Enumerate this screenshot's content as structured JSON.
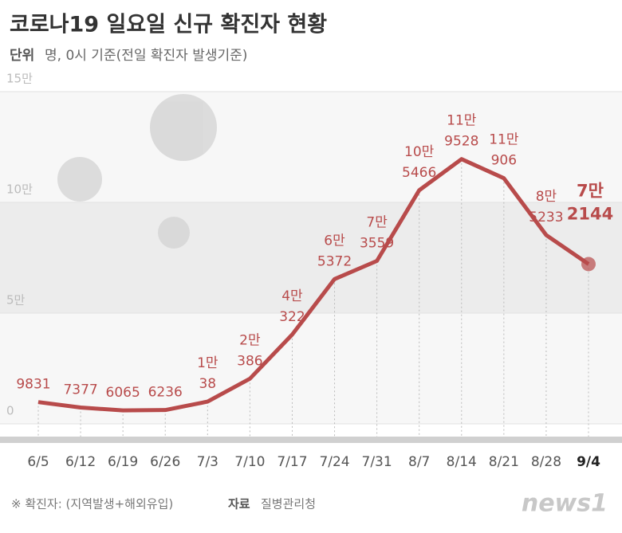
{
  "chart_data": {
    "type": "line",
    "title": "코로나19 일요일 신규 확진자 현황",
    "unit_label": "단위",
    "subtitle": "명, 0시 기준(전일 확진자 발생기준)",
    "categories": [
      "6/5",
      "6/12",
      "6/19",
      "6/26",
      "7/3",
      "7/10",
      "7/17",
      "7/24",
      "7/31",
      "8/7",
      "8/14",
      "8/21",
      "8/28",
      "9/4"
    ],
    "series": [
      {
        "color": "#b84b4b",
        "values": [
          9831,
          7377,
          6065,
          6236,
          10038,
          20386,
          40322,
          65372,
          73559,
          105466,
          119528,
          110906,
          85233,
          72144
        ],
        "value_labels": [
          "9831",
          "7377",
          "6065",
          "6236",
          "1만\n38",
          "2만\n386",
          "4만\n322",
          "6만\n5372",
          "7만\n3559",
          "10만\n5466",
          "11만\n9528",
          "11만\n906",
          "8만\n5233",
          "7만\n2144"
        ]
      }
    ],
    "ylim": [
      0,
      150000
    ],
    "yticks": [
      0,
      {
        "value": 50000,
        "label": "5만"
      },
      {
        "value": 100000,
        "label": "10만"
      },
      {
        "value": 150000,
        "label": "15만"
      }
    ],
    "footnote": "※ 확진자: (지역발생+해외유입)",
    "source_label": "자료",
    "source": "질병관리청",
    "logo": "news1"
  }
}
